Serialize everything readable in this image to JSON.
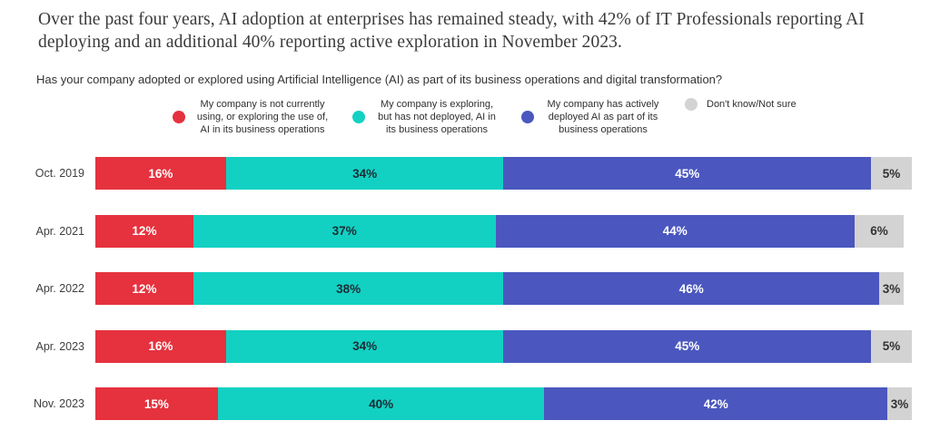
{
  "header": {
    "title_lines": [
      "Over the past four years, AI adoption at enterprises has remained steady, with 42% of IT Professionals reporting AI",
      "deploying and an additional 40% reporting active exploration in November 2023."
    ]
  },
  "chart_data": {
    "type": "bar",
    "subtype": "horizontal-stacked-100",
    "title": "Over the past four years, AI adoption at enterprises has remained steady, with 42% of IT Professionals reporting AI deploying and an additional 40% reporting active exploration in November 2023.",
    "question": "Has your company adopted or explored using Artificial Intelligence (AI) as part of its business operations and digital transformation?",
    "categories": [
      "Oct. 2019",
      "Apr. 2021",
      "Apr. 2022",
      "Apr. 2023",
      "Nov. 2023"
    ],
    "series": [
      {
        "name": "My company is not currently using, or exploring the use of, AI in its business operations",
        "color": "#E5323E",
        "label_color": "#FFFFFF",
        "values": [
          16,
          12,
          12,
          16,
          15
        ]
      },
      {
        "name": "My company is exploring, but has not deployed, AI in its business operations",
        "color": "#12D1C3",
        "label_color": "#1E2B33",
        "values": [
          34,
          37,
          38,
          34,
          40
        ]
      },
      {
        "name": "My company has actively deployed AI as part of its business operations",
        "color": "#4B57BF",
        "label_color": "#FFFFFF",
        "values": [
          45,
          44,
          46,
          45,
          42
        ]
      },
      {
        "name": "Don't know/Not sure",
        "color": "#D3D3D3",
        "label_color": "#333333",
        "values": [
          5,
          6,
          3,
          5,
          3
        ]
      }
    ],
    "value_suffix": "%",
    "xlim": [
      0,
      100
    ],
    "grid": false,
    "legend_position": "top"
  }
}
